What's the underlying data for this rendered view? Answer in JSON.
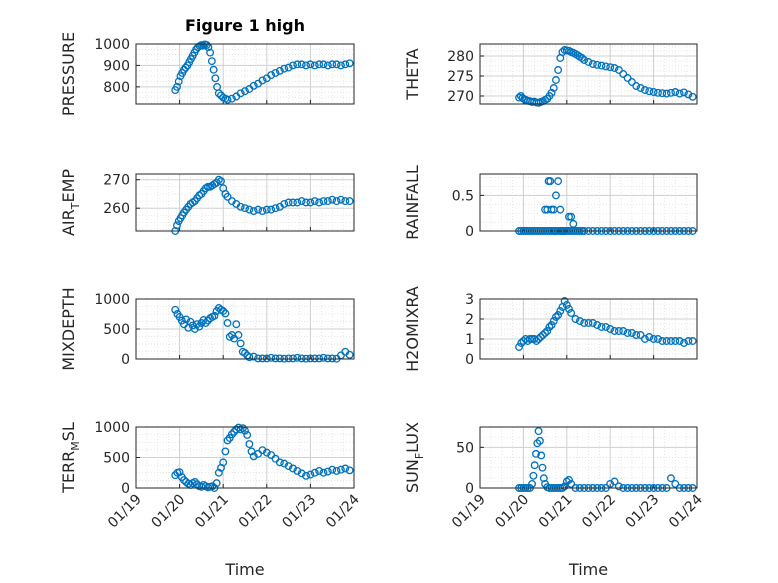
{
  "chart_data": {
    "type": "scatter",
    "title": "Figure 1 high",
    "grid": true,
    "marker": "circle",
    "color": "#0072BD",
    "x_ticks": [
      "01/19",
      "01/20",
      "01/21",
      "01/22",
      "01/23",
      "01/24"
    ],
    "x_range": [
      0,
      5
    ],
    "xlabel": "Time",
    "panels": [
      {
        "ylabel": "PRESSURE",
        "ylim": [
          720,
          1000
        ],
        "yticks": [
          800,
          900,
          1000
        ],
        "x": [
          0.9,
          0.94,
          0.98,
          1.02,
          1.06,
          1.1,
          1.14,
          1.18,
          1.22,
          1.26,
          1.3,
          1.34,
          1.38,
          1.42,
          1.46,
          1.5,
          1.54,
          1.58,
          1.62,
          1.66,
          1.7,
          1.74,
          1.78,
          1.82,
          1.86,
          1.9,
          1.95,
          2.0,
          2.05,
          2.1,
          2.2,
          2.3,
          2.4,
          2.5,
          2.6,
          2.7,
          2.8,
          2.9,
          3.0,
          3.1,
          3.2,
          3.3,
          3.4,
          3.5,
          3.6,
          3.7,
          3.8,
          3.9,
          4.0,
          4.1,
          4.2,
          4.3,
          4.4,
          4.5,
          4.6,
          4.7,
          4.8,
          4.9
        ],
        "y": [
          785,
          800,
          825,
          850,
          865,
          880,
          890,
          900,
          915,
          930,
          945,
          960,
          975,
          985,
          990,
          995,
          992,
          998,
          995,
          985,
          960,
          920,
          880,
          840,
          800,
          770,
          760,
          750,
          745,
          740,
          745,
          755,
          770,
          780,
          790,
          805,
          815,
          830,
          840,
          855,
          865,
          875,
          885,
          890,
          900,
          905,
          905,
          900,
          905,
          900,
          905,
          905,
          900,
          905,
          905,
          900,
          905,
          910
        ]
      },
      {
        "ylabel": "THETA",
        "ylim": [
          268,
          283
        ],
        "yticks": [
          270,
          275,
          280
        ],
        "x": [
          0.9,
          0.94,
          0.98,
          1.02,
          1.06,
          1.1,
          1.15,
          1.2,
          1.25,
          1.3,
          1.35,
          1.4,
          1.45,
          1.5,
          1.55,
          1.6,
          1.65,
          1.7,
          1.75,
          1.8,
          1.85,
          1.9,
          1.95,
          2.0,
          2.05,
          2.1,
          2.15,
          2.2,
          2.25,
          2.3,
          2.35,
          2.4,
          2.5,
          2.6,
          2.7,
          2.8,
          2.9,
          3.0,
          3.1,
          3.2,
          3.3,
          3.4,
          3.5,
          3.6,
          3.7,
          3.8,
          3.9,
          4.0,
          4.1,
          4.2,
          4.3,
          4.4,
          4.5,
          4.6,
          4.7,
          4.8,
          4.9
        ],
        "y": [
          269.6,
          270.0,
          269.5,
          269.2,
          269.0,
          268.8,
          268.7,
          268.5,
          268.6,
          268.4,
          268.3,
          268.5,
          268.7,
          269.0,
          269.3,
          270.0,
          270.8,
          272.0,
          274.0,
          276.5,
          279.5,
          281.0,
          281.5,
          281.4,
          281.3,
          281.0,
          280.8,
          280.5,
          280.2,
          279.8,
          279.5,
          279.0,
          278.5,
          278.0,
          277.8,
          277.6,
          277.4,
          277.2,
          277.0,
          276.5,
          275.5,
          274.5,
          273.5,
          272.5,
          272.0,
          271.5,
          271.2,
          271.0,
          270.8,
          270.7,
          270.6,
          270.8,
          271.0,
          270.6,
          270.9,
          270.4,
          269.8
        ]
      },
      {
        "ylabel": "AIR_TEMP",
        "ylabel_main": "AIR",
        "ylabel_sub": "T",
        "ylabel_rest": "EMP",
        "ylim": [
          252,
          272
        ],
        "yticks": [
          260,
          270
        ],
        "x": [
          0.9,
          0.94,
          0.98,
          1.02,
          1.06,
          1.1,
          1.15,
          1.2,
          1.25,
          1.3,
          1.35,
          1.4,
          1.45,
          1.5,
          1.55,
          1.6,
          1.65,
          1.7,
          1.75,
          1.8,
          1.85,
          1.9,
          1.95,
          2.0,
          2.05,
          2.1,
          2.2,
          2.3,
          2.4,
          2.5,
          2.6,
          2.7,
          2.8,
          2.9,
          3.0,
          3.1,
          3.2,
          3.3,
          3.4,
          3.5,
          3.6,
          3.7,
          3.8,
          3.9,
          4.0,
          4.1,
          4.2,
          4.3,
          4.4,
          4.5,
          4.6,
          4.7,
          4.8,
          4.9
        ],
        "y": [
          252.0,
          254.0,
          255.5,
          256.5,
          257.5,
          258.5,
          259.5,
          260.5,
          261.5,
          262.0,
          262.5,
          263.5,
          264.5,
          265.0,
          266.0,
          267.0,
          267.5,
          267.5,
          268.0,
          268.5,
          269.0,
          270.0,
          269.5,
          267.0,
          265.0,
          264.0,
          262.5,
          261.5,
          260.5,
          260.0,
          259.5,
          259.0,
          259.5,
          259.0,
          259.5,
          259.5,
          260.0,
          260.5,
          261.5,
          262.0,
          262.0,
          262.0,
          262.5,
          262.0,
          262.0,
          262.5,
          262.0,
          262.5,
          262.5,
          263.0,
          262.5,
          263.0,
          262.5,
          262.5
        ]
      },
      {
        "ylabel": "RAINFALL",
        "ylim": [
          0,
          0.8
        ],
        "yticks": [
          0,
          0.5
        ],
        "x": [
          0.9,
          0.95,
          1.0,
          1.05,
          1.1,
          1.15,
          1.2,
          1.25,
          1.3,
          1.35,
          1.4,
          1.45,
          1.5,
          1.55,
          1.6,
          1.65,
          1.7,
          1.75,
          1.8,
          1.85,
          1.9,
          1.95,
          2.0,
          2.05,
          2.1,
          2.15,
          2.2,
          2.25,
          2.3,
          2.35,
          2.4,
          2.5,
          2.6,
          2.7,
          2.8,
          2.9,
          3.0,
          3.1,
          3.2,
          3.3,
          3.4,
          3.5,
          3.6,
          3.7,
          3.8,
          3.9,
          4.0,
          4.1,
          4.2,
          4.3,
          4.4,
          4.5,
          4.6,
          4.7,
          4.8,
          4.9,
          1.5,
          1.55,
          1.58,
          1.62,
          1.65,
          1.7,
          1.72,
          1.75,
          1.8,
          1.85,
          1.88,
          1.92,
          1.95,
          2.05,
          2.1,
          2.15
        ],
        "y": [
          0,
          0,
          0,
          0,
          0,
          0,
          0,
          0,
          0,
          0,
          0,
          0,
          0,
          0,
          0,
          0,
          0,
          0,
          0,
          0,
          0,
          0,
          0,
          0,
          0,
          0,
          0,
          0,
          0,
          0,
          0,
          0,
          0,
          0,
          0,
          0,
          0,
          0,
          0,
          0,
          0,
          0,
          0,
          0,
          0,
          0,
          0,
          0,
          0,
          0,
          0,
          0,
          0,
          0,
          0,
          0,
          0.3,
          0.3,
          0.7,
          0.7,
          0.3,
          0.3,
          0,
          0.5,
          0.7,
          0.3,
          0,
          0,
          0,
          0.2,
          0.2,
          0.1
        ]
      },
      {
        "ylabel": "MIXDEPTH",
        "ylim": [
          0,
          1000
        ],
        "yticks": [
          0,
          500,
          1000
        ],
        "x": [
          0.9,
          0.95,
          1.0,
          1.05,
          1.1,
          1.15,
          1.2,
          1.25,
          1.3,
          1.35,
          1.4,
          1.45,
          1.5,
          1.55,
          1.6,
          1.65,
          1.7,
          1.75,
          1.8,
          1.85,
          1.9,
          1.95,
          2.0,
          2.05,
          2.1,
          2.15,
          2.2,
          2.25,
          2.3,
          2.35,
          2.4,
          2.45,
          2.5,
          2.55,
          2.6,
          2.7,
          2.8,
          2.9,
          3.0,
          3.1,
          3.2,
          3.3,
          3.4,
          3.5,
          3.6,
          3.7,
          3.8,
          3.9,
          4.0,
          4.1,
          4.2,
          4.3,
          4.4,
          4.5,
          4.6,
          4.7,
          4.8,
          4.9
        ],
        "y": [
          820,
          750,
          700,
          640,
          580,
          660,
          520,
          620,
          560,
          500,
          580,
          540,
          600,
          650,
          600,
          640,
          680,
          700,
          720,
          800,
          850,
          820,
          800,
          760,
          600,
          370,
          400,
          340,
          580,
          400,
          260,
          120,
          100,
          60,
          30,
          40,
          10,
          10,
          10,
          20,
          10,
          10,
          5,
          10,
          10,
          20,
          10,
          5,
          10,
          10,
          10,
          20,
          10,
          10,
          5,
          60,
          120,
          70
        ]
      },
      {
        "ylabel": "H2OMIXRA",
        "ylim": [
          0,
          3
        ],
        "yticks": [
          0,
          1,
          2,
          3
        ],
        "x": [
          0.9,
          0.95,
          1.0,
          1.05,
          1.1,
          1.15,
          1.2,
          1.25,
          1.3,
          1.35,
          1.4,
          1.45,
          1.5,
          1.55,
          1.6,
          1.65,
          1.7,
          1.75,
          1.8,
          1.85,
          1.9,
          1.95,
          2.0,
          2.05,
          2.1,
          2.2,
          2.3,
          2.4,
          2.5,
          2.6,
          2.7,
          2.8,
          2.9,
          3.0,
          3.1,
          3.2,
          3.3,
          3.4,
          3.5,
          3.6,
          3.7,
          3.8,
          3.9,
          4.0,
          4.1,
          4.2,
          4.3,
          4.4,
          4.5,
          4.6,
          4.7,
          4.8,
          4.9
        ],
        "y": [
          0.6,
          0.8,
          0.9,
          1.0,
          0.9,
          1.0,
          1.0,
          1.0,
          0.9,
          1.0,
          1.1,
          1.2,
          1.3,
          1.4,
          1.6,
          1.7,
          1.9,
          2.1,
          2.2,
          2.4,
          2.6,
          2.9,
          2.7,
          2.5,
          2.3,
          2.0,
          1.9,
          1.8,
          1.8,
          1.8,
          1.7,
          1.6,
          1.6,
          1.5,
          1.4,
          1.4,
          1.4,
          1.3,
          1.3,
          1.2,
          1.2,
          1.0,
          1.1,
          1.0,
          1.0,
          0.9,
          0.9,
          0.9,
          0.9,
          0.9,
          0.8,
          0.9,
          0.9
        ]
      },
      {
        "ylabel": "TERR_MSL",
        "ylabel_main": "TERR",
        "ylabel_sub": "M",
        "ylabel_rest": "SL",
        "ylim": [
          0,
          1000
        ],
        "yticks": [
          0,
          500,
          1000
        ],
        "x": [
          0.9,
          0.95,
          1.0,
          1.05,
          1.1,
          1.15,
          1.2,
          1.25,
          1.3,
          1.35,
          1.4,
          1.45,
          1.5,
          1.55,
          1.6,
          1.65,
          1.7,
          1.75,
          1.8,
          1.85,
          1.9,
          1.95,
          2.0,
          2.05,
          2.1,
          2.15,
          2.2,
          2.25,
          2.3,
          2.35,
          2.4,
          2.45,
          2.5,
          2.55,
          2.6,
          2.65,
          2.7,
          2.8,
          2.9,
          3.0,
          3.1,
          3.2,
          3.3,
          3.4,
          3.5,
          3.6,
          3.7,
          3.8,
          3.9,
          4.0,
          4.1,
          4.2,
          4.3,
          4.4,
          4.5,
          4.6,
          4.7,
          4.8,
          4.9
        ],
        "y": [
          210,
          250,
          260,
          180,
          130,
          100,
          70,
          50,
          80,
          100,
          60,
          30,
          20,
          50,
          30,
          10,
          20,
          30,
          0,
          80,
          250,
          330,
          420,
          600,
          780,
          820,
          880,
          920,
          960,
          990,
          960,
          980,
          940,
          870,
          720,
          600,
          520,
          560,
          620,
          580,
          540,
          480,
          420,
          400,
          360,
          320,
          280,
          240,
          200,
          220,
          250,
          280,
          250,
          270,
          300,
          280,
          300,
          320,
          290
        ]
      },
      {
        "ylabel": "SUN_FLUX",
        "ylabel_main": "SUN",
        "ylabel_sub": "F",
        "ylabel_rest": "LUX",
        "ylim": [
          0,
          75
        ],
        "yticks": [
          0,
          50
        ],
        "x": [
          0.9,
          0.95,
          1.0,
          1.05,
          1.1,
          1.15,
          1.2,
          1.23,
          1.26,
          1.29,
          1.32,
          1.35,
          1.38,
          1.41,
          1.44,
          1.47,
          1.5,
          1.55,
          1.6,
          1.65,
          1.7,
          1.75,
          1.8,
          1.85,
          1.9,
          1.95,
          2.0,
          2.05,
          2.1,
          2.2,
          2.3,
          2.4,
          2.5,
          2.6,
          2.7,
          2.8,
          2.9,
          3.0,
          3.1,
          3.2,
          3.3,
          3.4,
          3.5,
          3.6,
          3.7,
          3.8,
          3.9,
          4.0,
          4.1,
          4.2,
          4.3,
          4.4,
          4.5,
          4.6,
          4.7,
          4.8,
          4.9
        ],
        "y": [
          0,
          0,
          0,
          0,
          0,
          0,
          5,
          15,
          28,
          42,
          55,
          70,
          58,
          40,
          25,
          12,
          5,
          1,
          0,
          0,
          0,
          0,
          0,
          0,
          0,
          2,
          8,
          10,
          5,
          0,
          0,
          0,
          0,
          0,
          0,
          0,
          0,
          5,
          8,
          2,
          0,
          0,
          0,
          0,
          0,
          0,
          0,
          0,
          0,
          0,
          0,
          12,
          5,
          0,
          0,
          0,
          0
        ]
      }
    ]
  }
}
